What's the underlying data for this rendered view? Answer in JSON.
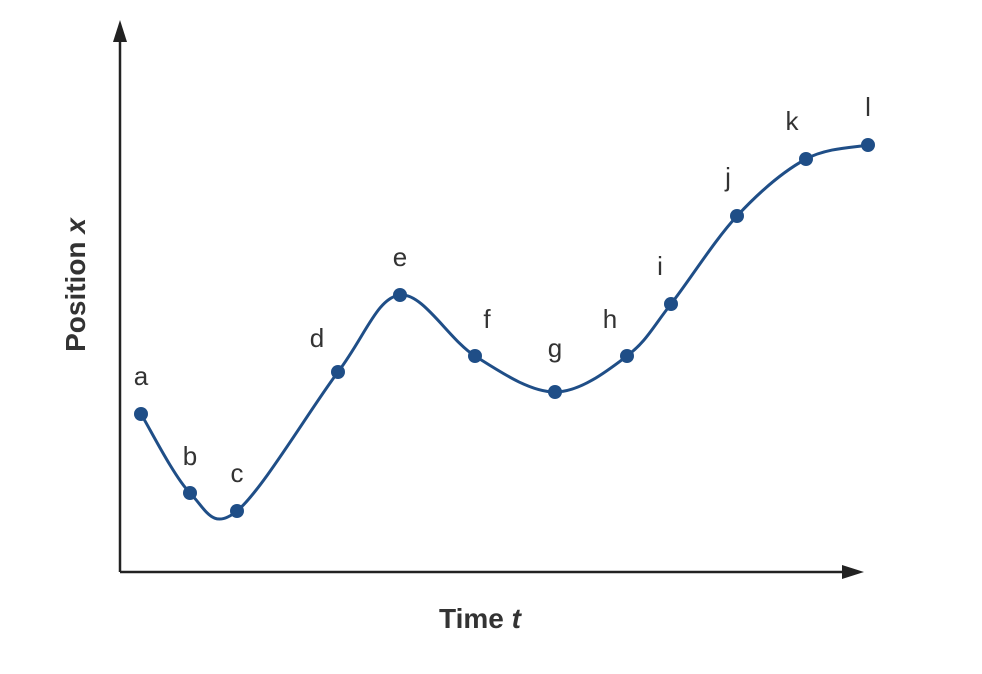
{
  "x_axis": {
    "label": "Time",
    "variable": "t"
  },
  "y_axis": {
    "label": "Position",
    "variable": "x"
  },
  "points": [
    {
      "label": "a"
    },
    {
      "label": "b"
    },
    {
      "label": "c"
    },
    {
      "label": "d"
    },
    {
      "label": "e"
    },
    {
      "label": "f"
    },
    {
      "label": "g"
    },
    {
      "label": "h"
    },
    {
      "label": "i"
    },
    {
      "label": "j"
    },
    {
      "label": "k"
    },
    {
      "label": "l"
    }
  ]
}
